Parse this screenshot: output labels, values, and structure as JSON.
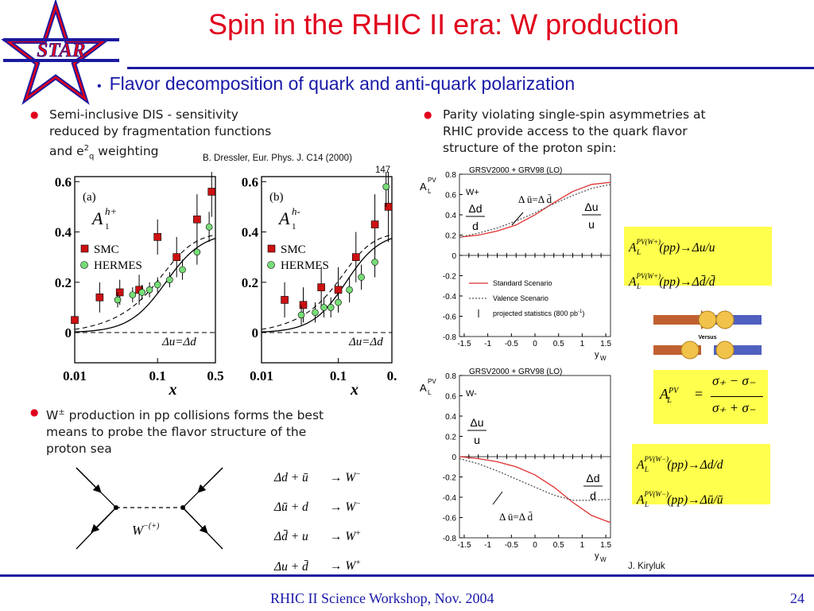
{
  "slide": {
    "title": "Spin in the RHIC II era: W production",
    "subtitle": "Flavor decomposition of quark and anti-quark polarization",
    "logo_text": "STAR",
    "left_bullet_1_lines": [
      "Semi-inclusive DIS - sensitivity",
      "reduced by fragmentation functions"
    ],
    "left_bullet_1_last_a": "and e",
    "left_bullet_1_last_sup": "2",
    "left_bullet_1_last_sub": "q",
    "left_bullet_1_last_b": " weighting",
    "citation_1": "B. Dressler, Eur. Phys. J. C14 (2000)",
    "citation_1_cont": "147",
    "right_bullet_1_lines": [
      "Parity violating single-spin asymmetries at",
      "RHIC provide access to the quark flavor",
      "structure of the proton spin:"
    ],
    "left_bullet_2_first_a": "W",
    "left_bullet_2_first_sup": "±",
    "left_bullet_2_first_b": " production in pp collisions forms the best",
    "left_bullet_2_lines": [
      "means to probe the flavor structure of the",
      "proton sea"
    ],
    "citation_2": "J. Kiryluk",
    "footer_left": "RHIC II Science Workshop, Nov. 2004",
    "footer_right": "24",
    "versus": "Versus"
  },
  "colors": {
    "title": "#e0001b",
    "accent_blue": "#1919a8",
    "formula_bg": "#ffff4d",
    "model_red": "#e03030"
  },
  "chart_data": [
    {
      "type": "scatter",
      "panel_label": "(a)",
      "ylabel": "A",
      "ylabel_sup": "h+",
      "ylabel_sub": "1",
      "xlabel": "x",
      "x_scale": "log",
      "xlim": [
        0.01,
        0.5
      ],
      "ylim": [
        -0.12,
        0.62
      ],
      "y_ticks": [
        "0.6",
        "0.4",
        "0.2",
        "0"
      ],
      "x_ticks": [
        "0.01",
        "0.1",
        "0.5"
      ],
      "legend": [
        "SMC",
        "HERMES"
      ],
      "annotation": "Δu=Δd",
      "series": [
        {
          "name": "SMC",
          "marker": "square",
          "color": "#cc1111",
          "x": [
            0.01,
            0.02,
            0.035,
            0.06,
            0.1,
            0.17,
            0.3,
            0.45
          ],
          "y": [
            0.05,
            0.14,
            0.16,
            0.17,
            0.38,
            0.3,
            0.45,
            0.56
          ],
          "err": [
            0.05,
            0.06,
            0.05,
            0.06,
            0.07,
            0.08,
            0.1,
            0.1
          ]
        },
        {
          "name": "HERMES",
          "marker": "circle",
          "color": "#55cc55",
          "x": [
            0.033,
            0.05,
            0.065,
            0.08,
            0.1,
            0.14,
            0.2,
            0.3,
            0.42
          ],
          "y": [
            0.13,
            0.15,
            0.16,
            0.17,
            0.19,
            0.21,
            0.25,
            0.32,
            0.42
          ],
          "err": [
            0.03,
            0.03,
            0.03,
            0.03,
            0.03,
            0.03,
            0.04,
            0.05,
            0.06
          ]
        }
      ]
    },
    {
      "type": "scatter",
      "panel_label": "(b)",
      "ylabel": "A",
      "ylabel_sup": "h-",
      "ylabel_sub": "1",
      "xlabel": "x",
      "x_scale": "log",
      "xlim": [
        0.01,
        0.5
      ],
      "ylim": [
        -0.12,
        0.62
      ],
      "y_ticks": [
        "0.6",
        "0.4",
        "0.2",
        "0"
      ],
      "x_ticks": [
        "0.01",
        "0.1",
        "0."
      ],
      "legend": [
        "SMC",
        "HERMES"
      ],
      "annotation": "Δu=Δd",
      "series": [
        {
          "name": "SMC",
          "marker": "square",
          "color": "#cc1111",
          "x": [
            0.02,
            0.035,
            0.06,
            0.1,
            0.17,
            0.3,
            0.45
          ],
          "y": [
            0.13,
            0.11,
            0.18,
            0.17,
            0.3,
            0.43,
            0.5
          ],
          "err": [
            0.07,
            0.07,
            0.08,
            0.09,
            0.1,
            0.12,
            0.14
          ]
        },
        {
          "name": "HERMES",
          "marker": "circle",
          "color": "#55cc55",
          "x": [
            0.033,
            0.05,
            0.065,
            0.08,
            0.1,
            0.14,
            0.2,
            0.3,
            0.42
          ],
          "y": [
            0.07,
            0.08,
            0.1,
            0.1,
            0.12,
            0.17,
            0.22,
            0.28,
            0.58
          ],
          "err": [
            0.04,
            0.04,
            0.04,
            0.04,
            0.04,
            0.05,
            0.05,
            0.06,
            0.08
          ]
        }
      ]
    },
    {
      "type": "line",
      "header": "GRSV2000 + GRV98 (LO)",
      "ylabel": "A",
      "ylabel_sup": "PV",
      "ylabel_sub": "L",
      "xlabel": "y",
      "xlabel_sub": "W",
      "panel_label": "W+",
      "xlim": [
        -1.6,
        1.6
      ],
      "ylim": [
        -0.8,
        0.8
      ],
      "y_ticks": [
        "0.8",
        "0.6",
        "0.4",
        "0.2",
        "0",
        "-0.2",
        "-0.4",
        "-0.6",
        "-0.8"
      ],
      "x_ticks": [
        "-1.5",
        "-1",
        "-0.5",
        "0",
        "0.5",
        "1",
        "1.5"
      ],
      "legend": [
        "Standard Scenario",
        "Valence Scenario",
        "projected statistics (800 pb"
      ],
      "legend_sup": "-1",
      "legend_close": ")",
      "annotations": [
        "Δd",
        "d",
        "Δu",
        "u",
        "Δ ū=Δ d̄"
      ],
      "series": [
        {
          "name": "Standard Scenario",
          "style": "solid",
          "color": "#e03030",
          "x": [
            -1.6,
            -1.2,
            -0.8,
            -0.4,
            0,
            0.4,
            0.8,
            1.2,
            1.6
          ],
          "y": [
            0.18,
            0.2,
            0.24,
            0.3,
            0.4,
            0.52,
            0.63,
            0.7,
            0.72
          ]
        },
        {
          "name": "Valence Scenario",
          "style": "dotted",
          "color": "#555555",
          "x": [
            -1.6,
            -1.2,
            -0.8,
            -0.4,
            0,
            0.4,
            0.8,
            1.2,
            1.6
          ],
          "y": [
            0.18,
            0.22,
            0.27,
            0.34,
            0.42,
            0.51,
            0.59,
            0.66,
            0.7
          ]
        }
      ]
    },
    {
      "type": "line",
      "header": "GRSV2000 + GRV98 (LO)",
      "ylabel": "A",
      "ylabel_sup": "PV",
      "ylabel_sub": "L",
      "xlabel": "y",
      "xlabel_sub": "W",
      "panel_label": "W-",
      "xlim": [
        -1.6,
        1.6
      ],
      "ylim": [
        -0.8,
        0.8
      ],
      "y_ticks": [
        "0.8",
        "0.6",
        "0.4",
        "0.2",
        "0",
        "-0.2",
        "-0.4",
        "-0.6",
        "-0.8"
      ],
      "x_ticks": [
        "-1.5",
        "-1",
        "-0.5",
        "0",
        "0.5",
        "1",
        "1.5"
      ],
      "annotations": [
        "Δu",
        "u",
        "Δd",
        "d",
        "Δ ū=Δ d̄"
      ],
      "series": [
        {
          "name": "Standard Scenario",
          "style": "solid",
          "color": "#e03030",
          "x": [
            -1.6,
            -1.2,
            -0.8,
            -0.4,
            0,
            0.4,
            0.8,
            1.2,
            1.6
          ],
          "y": [
            0.0,
            -0.02,
            -0.05,
            -0.1,
            -0.18,
            -0.3,
            -0.45,
            -0.58,
            -0.65
          ]
        },
        {
          "name": "Valence Scenario",
          "style": "dotted",
          "color": "#555555",
          "x": [
            -1.6,
            -1.2,
            -0.8,
            -0.4,
            0,
            0.4,
            0.8,
            1.2,
            1.6
          ],
          "y": [
            -0.02,
            -0.07,
            -0.14,
            -0.22,
            -0.3,
            -0.38,
            -0.43,
            -0.43,
            -0.42
          ]
        }
      ]
    }
  ],
  "feynman": {
    "label": "W",
    "label_sup": "−(+)"
  },
  "reactions": [
    {
      "lhs": "Δd + ū",
      "rhs": "W",
      "rhs_sup": "−"
    },
    {
      "lhs": "Δū + d",
      "rhs": "W",
      "rhs_sup": "−"
    },
    {
      "lhs": "Δd̄ + u",
      "rhs": "W",
      "rhs_sup": "+"
    },
    {
      "lhs": "Δu + d̄",
      "rhs": "W",
      "rhs_sup": "+"
    }
  ],
  "formulas": {
    "plus": [
      "Δu/u",
      "Δd̄/d̄"
    ],
    "plus_w": "W",
    "plus_sup": "+",
    "minus": [
      "Δd/d",
      "Δū/ū"
    ],
    "minus_w": "W",
    "minus_sup": "−",
    "lhs": "A",
    "lhs_sup": "PV",
    "lhs_sub": "L",
    "pp": "(pp)",
    "arrow": "→",
    "asym_num": "σ₊ − σ₋",
    "asym_den": "σ₊ + σ₋",
    "asym_eq": "="
  }
}
